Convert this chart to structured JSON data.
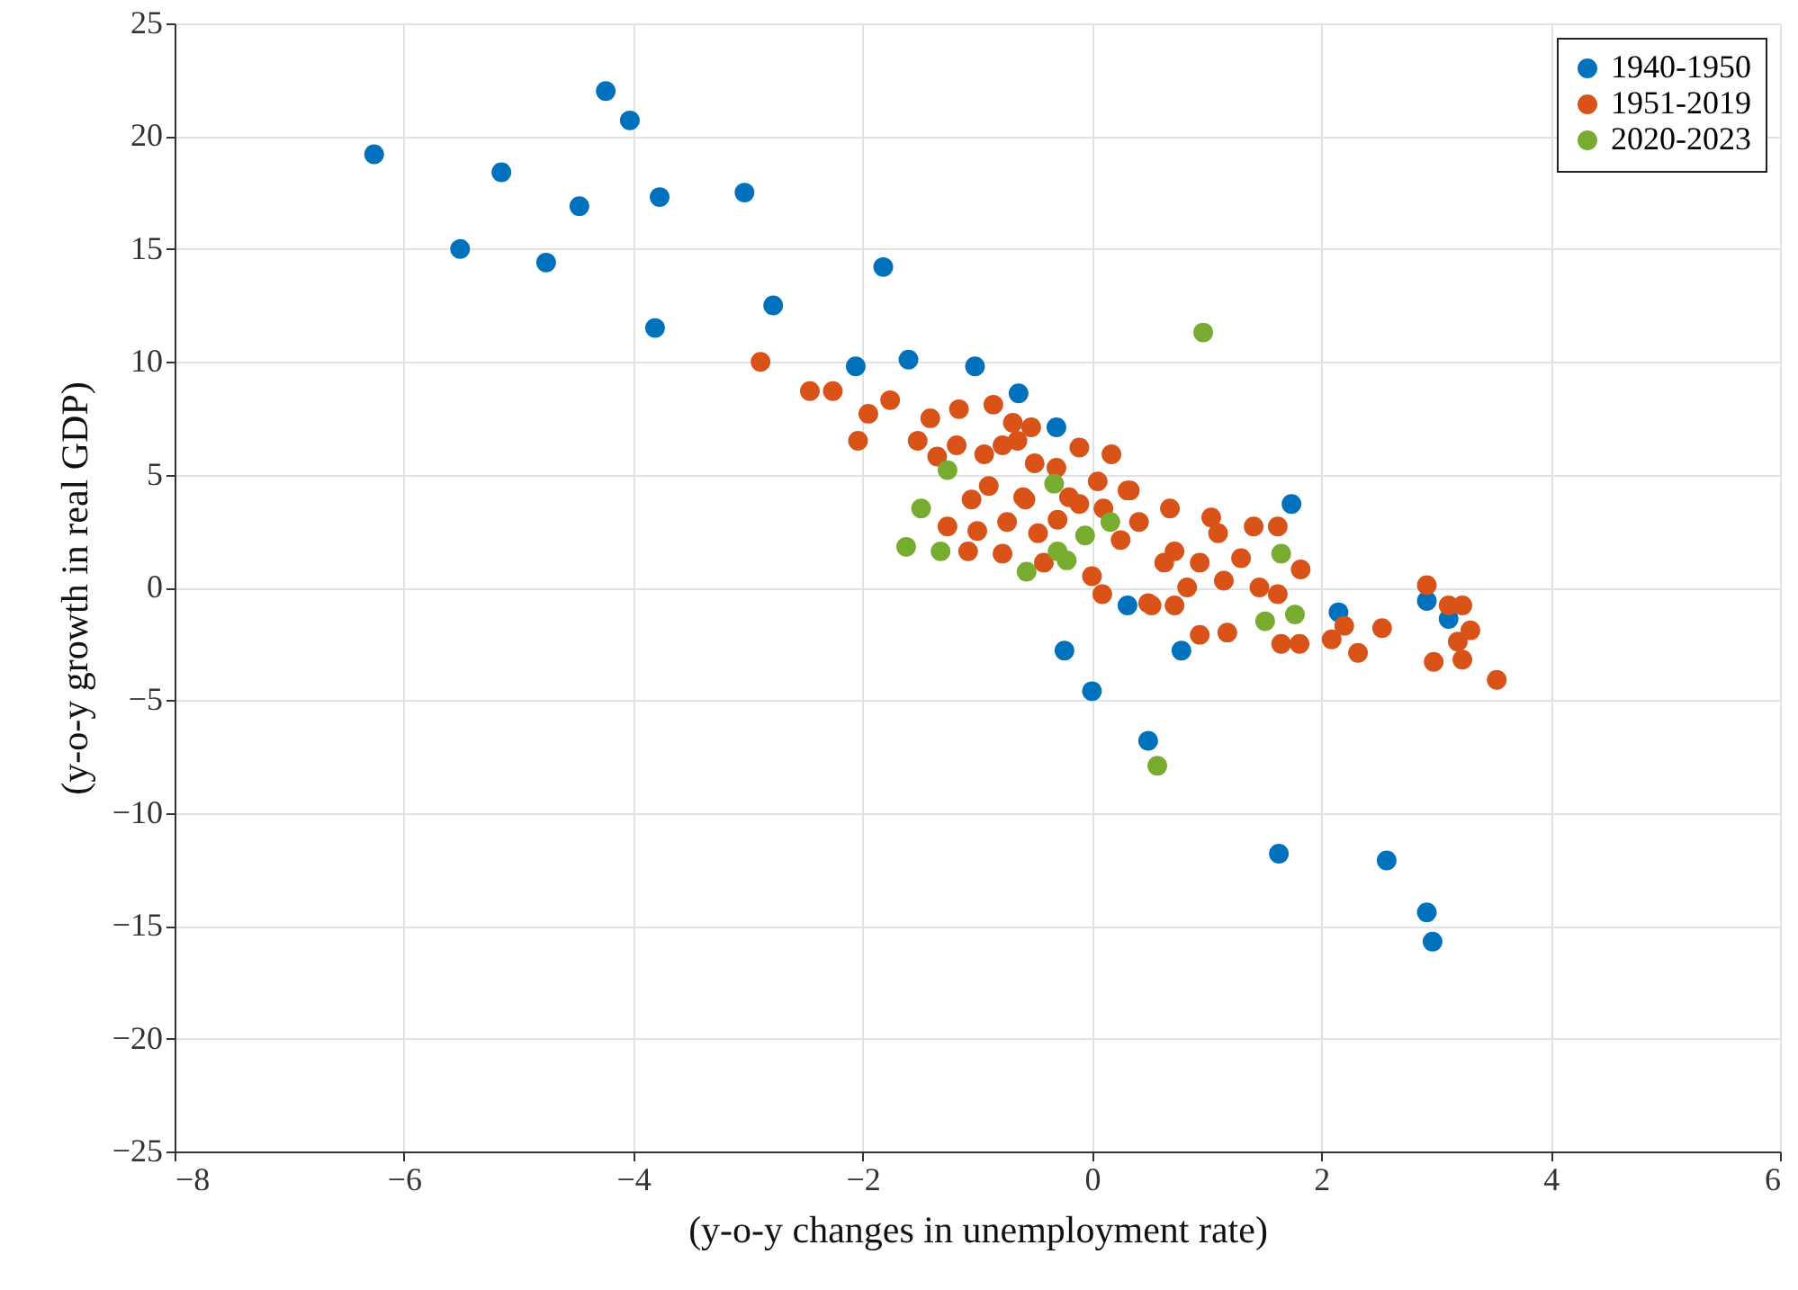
{
  "chart_data": {
    "type": "scatter",
    "xlabel": "(y-o-y changes in unemployment rate)",
    "ylabel": "(y-o-y growth in real GDP)",
    "xlim": [
      -8,
      6
    ],
    "xticks": [
      -8,
      -6,
      -4,
      -2,
      0,
      2,
      4,
      6
    ],
    "ylim": [
      -25,
      25
    ],
    "yticks": [
      -25,
      -20,
      -15,
      -10,
      -5,
      0,
      5,
      10,
      15,
      20,
      25
    ],
    "grid": true,
    "legend": "top right",
    "marker": "circle",
    "series": [
      {
        "name": "1940-1950",
        "color": "#0072bd",
        "x": [
          -6.26,
          -5.51,
          -5.15,
          -4.76,
          -4.47,
          -4.24,
          -4.03,
          -3.77,
          -3.81,
          -3.03,
          -2.78,
          -1.82,
          -2.06,
          -1.6,
          -1.02,
          -0.64,
          -0.31,
          1.74,
          -0.24,
          0.0,
          0.49,
          0.31,
          0.78,
          2.15,
          1.63,
          2.57,
          2.92,
          2.97,
          2.92,
          3.11
        ],
        "values": [
          19.2,
          15.0,
          18.4,
          14.4,
          16.9,
          22.0,
          20.7,
          17.3,
          11.5,
          17.5,
          12.5,
          14.2,
          9.8,
          10.1,
          9.8,
          8.6,
          7.1,
          3.7,
          -2.8,
          -4.6,
          -6.8,
          -0.8,
          -2.8,
          -1.1,
          -11.8,
          -12.1,
          -14.4,
          -15.7,
          -0.6,
          -1.4
        ]
      },
      {
        "name": "1951-2019",
        "color": "#d95319",
        "x": [
          -2.89,
          -2.46,
          -2.26,
          -2.04,
          -1.95,
          -1.76,
          -1.52,
          -1.41,
          -1.16,
          -0.86,
          -0.69,
          -0.53,
          -0.11,
          0.17,
          0.33,
          0.68,
          1.04,
          -1.18,
          -0.94,
          -0.78,
          -1.05,
          -1.26,
          -1.08,
          -0.78,
          -0.42,
          0.0,
          0.09,
          0.49,
          0.72,
          0.94,
          0.83,
          -0.58,
          -0.74,
          -0.47,
          -0.11,
          -0.31,
          0.25,
          0.41,
          0.72,
          0.94,
          1.1,
          0.05,
          0.31,
          1.41,
          1.62,
          1.82,
          1.3,
          0.63,
          1.15,
          1.46,
          1.62,
          0.52,
          1.18,
          1.65,
          1.81,
          2.09,
          2.2,
          2.32,
          2.53,
          2.92,
          3.11,
          3.23,
          3.3,
          3.19,
          2.98,
          3.23,
          3.53,
          -0.6,
          -0.9,
          -0.3,
          -1.0,
          -0.5,
          0.1,
          -0.2,
          -1.35,
          -0.65
        ],
        "values": [
          10.0,
          8.7,
          8.7,
          6.5,
          7.7,
          8.3,
          6.5,
          7.5,
          7.9,
          8.1,
          7.3,
          7.1,
          6.2,
          5.9,
          4.3,
          3.5,
          3.1,
          6.3,
          5.9,
          6.3,
          3.9,
          2.7,
          1.6,
          1.5,
          1.1,
          0.5,
          -0.3,
          -0.7,
          -0.8,
          -2.1,
          0.0,
          3.9,
          2.9,
          2.4,
          3.7,
          5.3,
          2.1,
          2.9,
          1.6,
          1.1,
          2.4,
          4.7,
          4.3,
          2.7,
          2.7,
          0.8,
          1.3,
          1.1,
          0.3,
          0.0,
          -0.3,
          -0.8,
          -2.0,
          -2.5,
          -2.5,
          -2.3,
          -1.7,
          -2.9,
          -1.8,
          0.1,
          -0.8,
          -0.8,
          -1.9,
          -2.4,
          -3.3,
          -3.2,
          -4.1,
          4.0,
          4.5,
          3.0,
          2.5,
          5.5,
          3.5,
          4.0,
          5.8,
          6.5
        ]
      },
      {
        "name": "2020-2023",
        "color": "#77ac30",
        "x": [
          0.97,
          -1.26,
          -1.49,
          -1.62,
          -1.32,
          -0.33,
          0.16,
          -0.06,
          -0.3,
          -0.22,
          -0.57,
          1.65,
          1.51,
          1.77,
          0.57
        ],
        "values": [
          11.3,
          5.2,
          3.5,
          1.8,
          1.6,
          4.6,
          2.9,
          2.3,
          1.6,
          1.2,
          0.7,
          1.5,
          -1.5,
          -1.2,
          -7.9
        ]
      }
    ]
  }
}
